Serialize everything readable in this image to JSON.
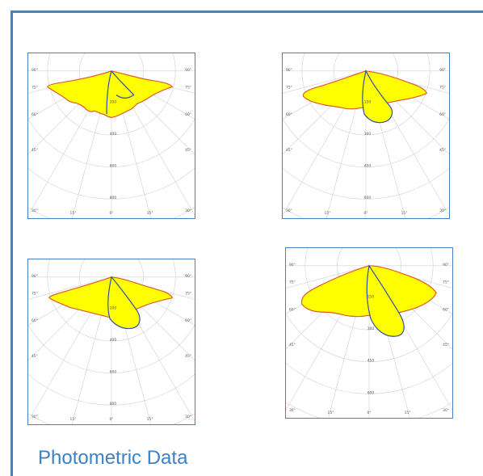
{
  "caption": "Photometric Data",
  "colors": {
    "frame": "#4a7fc8",
    "caption": "#3b82c6",
    "fill": "#ffff00",
    "outline_primary": "#e05a28",
    "outline_secondary": "#2f4ea0",
    "grid": "#d0d0d0"
  },
  "diagrams": [
    {
      "name": "photometric-diagram-1",
      "angle_labels_left": [
        "90°",
        "75°",
        "60°",
        "45°",
        "30°"
      ],
      "angle_labels_right": [
        "90°",
        "75°",
        "60°",
        "45°",
        "30°"
      ],
      "bottom_labels": [
        "15°",
        "0°",
        "15°"
      ],
      "value_labels": [
        "200",
        "400",
        "600",
        "800",
        "1000"
      ]
    },
    {
      "name": "photometric-diagram-2",
      "angle_labels_left": [
        "90°",
        "75°",
        "60°",
        "45°",
        "30°"
      ],
      "angle_labels_right": [
        "90°",
        "75°",
        "60°",
        "45°",
        "30°"
      ],
      "bottom_labels": [
        "15°",
        "0°",
        "15°"
      ],
      "value_labels": [
        "150",
        "300",
        "450",
        "600",
        "750"
      ]
    },
    {
      "name": "photometric-diagram-3",
      "angle_labels_left": [
        "90°",
        "75°",
        "60°",
        "45°",
        "30°"
      ],
      "angle_labels_right": [
        "90°",
        "75°",
        "60°",
        "45°",
        "30°"
      ],
      "bottom_labels": [
        "15°",
        "0°",
        "15°"
      ],
      "value_labels": [
        "200",
        "400",
        "600",
        "800",
        "1000"
      ]
    },
    {
      "name": "photometric-diagram-4",
      "angle_labels_left": [
        "90°",
        "75°",
        "60°",
        "45°",
        "30°"
      ],
      "angle_labels_right": [
        "90°",
        "75°",
        "60°",
        "45°",
        "30°"
      ],
      "bottom_labels": [
        "15°",
        "0°",
        "15°"
      ],
      "value_labels": [
        "150",
        "300",
        "450",
        "600",
        "750"
      ]
    }
  ]
}
